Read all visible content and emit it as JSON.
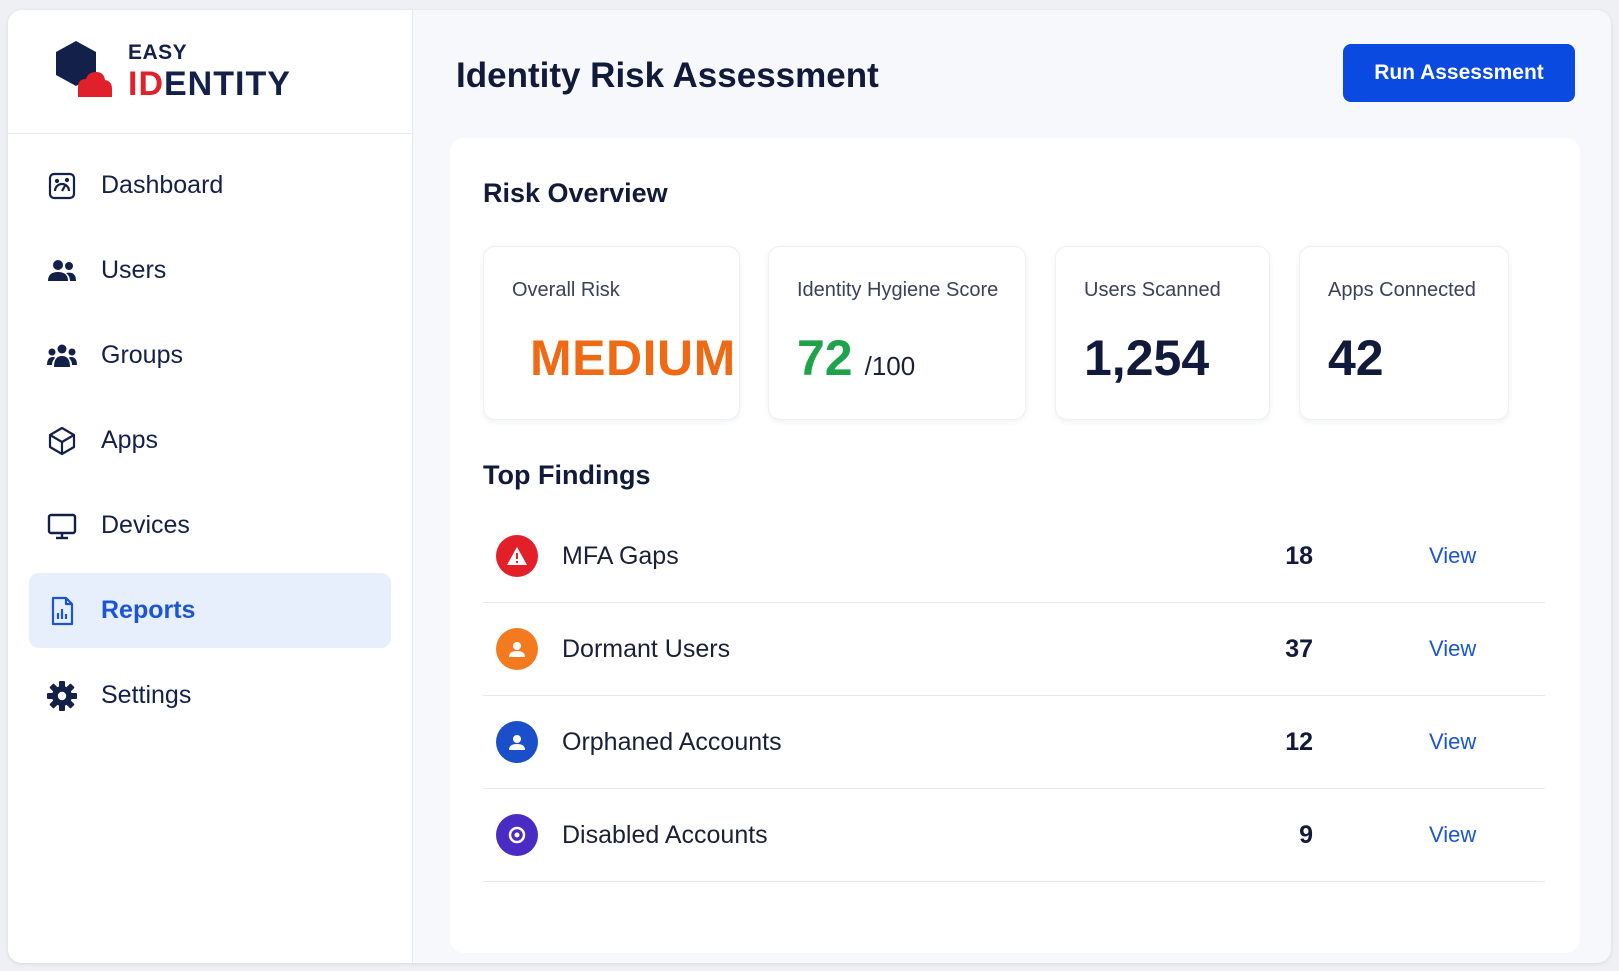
{
  "brand": {
    "top": "EASY",
    "bottom_red": "ID",
    "bottom_navy": "ENTITY"
  },
  "sidebar": {
    "items": [
      {
        "label": "Dashboard",
        "icon": "dashboard-icon",
        "active": false
      },
      {
        "label": "Users",
        "icon": "users-icon",
        "active": false
      },
      {
        "label": "Groups",
        "icon": "groups-icon",
        "active": false
      },
      {
        "label": "Apps",
        "icon": "apps-icon",
        "active": false
      },
      {
        "label": "Devices",
        "icon": "monitor-icon",
        "active": false
      },
      {
        "label": "Reports",
        "icon": "report-icon",
        "active": true
      },
      {
        "label": "Settings",
        "icon": "gear-icon",
        "active": false
      }
    ]
  },
  "header": {
    "title": "Identity Risk Assessment",
    "action_label": "Run Assessment"
  },
  "overview": {
    "title": "Risk Overview",
    "cards": [
      {
        "label": "Overall Risk",
        "value": "MEDIUM"
      },
      {
        "label": "Identity Hygiene Score",
        "value": "72",
        "suffix": "/100"
      },
      {
        "label": "Users Scanned",
        "value": "1,254"
      },
      {
        "label": "Apps Connected",
        "value": "42"
      }
    ]
  },
  "findings": {
    "title": "Top Findings",
    "rows": [
      {
        "label": "MFA Gaps",
        "count": "18",
        "action": "View",
        "icon": "warning-icon",
        "color": "#e3202a"
      },
      {
        "label": "Dormant Users",
        "count": "37",
        "action": "View",
        "icon": "user-icon",
        "color": "#f47a1f"
      },
      {
        "label": "Orphaned Accounts",
        "count": "12",
        "action": "View",
        "icon": "user-icon",
        "color": "#1a4fc9"
      },
      {
        "label": "Disabled Accounts",
        "count": "9",
        "action": "View",
        "icon": "target-icon",
        "color": "#4a2cc4"
      }
    ]
  },
  "colors": {
    "accent": "#0b4ae0",
    "medium": "#ef6a14",
    "score": "#1ea24a",
    "brand_red": "#e0202a",
    "brand_navy": "#13204a"
  }
}
